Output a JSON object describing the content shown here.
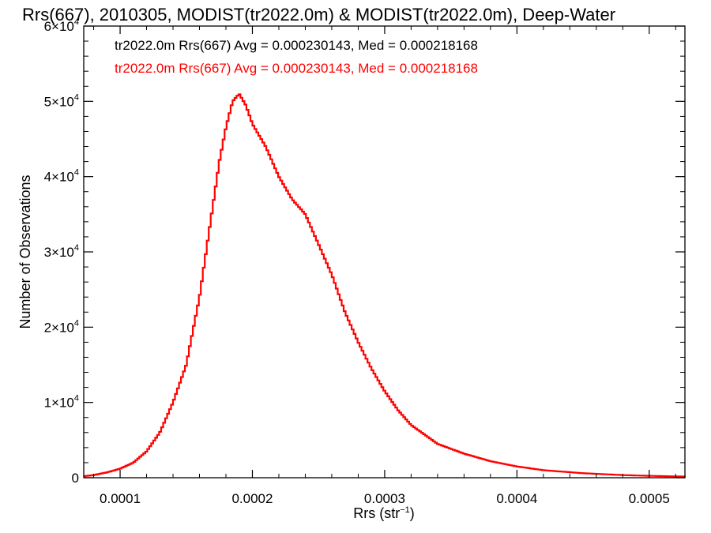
{
  "chart_data": {
    "type": "line",
    "style": "histogram-step",
    "title": "Rrs(667), 2010305, MODIST(tr2022.0m) & MODIST(tr2022.0m), Deep-Water",
    "xlabel_main": "Rrs (str",
    "xlabel_sup": "−1",
    "xlabel_close": ")",
    "ylabel": "Number of Observations",
    "xlim": [
      7.25e-05,
      0.000527
    ],
    "ylim": [
      0,
      60000
    ],
    "x_ticks": [
      {
        "value": 0.0001,
        "label": "0.0001"
      },
      {
        "value": 0.0002,
        "label": "0.0002"
      },
      {
        "value": 0.0003,
        "label": "0.0003"
      },
      {
        "value": 0.0004,
        "label": "0.0004"
      },
      {
        "value": 0.0005,
        "label": "0.0005"
      }
    ],
    "y_ticks": [
      {
        "value": 0,
        "mant": "0",
        "exp": ""
      },
      {
        "value": 10000,
        "mant": "1×10",
        "exp": "4"
      },
      {
        "value": 20000,
        "mant": "2×10",
        "exp": "4"
      },
      {
        "value": 30000,
        "mant": "3×10",
        "exp": "4"
      },
      {
        "value": 40000,
        "mant": "4×10",
        "exp": "4"
      },
      {
        "value": 50000,
        "mant": "5×10",
        "exp": "4"
      },
      {
        "value": 60000,
        "mant": "6×10",
        "exp": "4"
      }
    ],
    "legend": [
      {
        "text": "tr2022.0m Rrs(667) Avg = 0.000230143, Med = 0.000218168",
        "color": "#000000"
      },
      {
        "text": "tr2022.0m Rrs(667) Avg = 0.000230143, Med = 0.000218168",
        "color": "#ff0000"
      }
    ],
    "series_color": "#ff0000",
    "points": [
      [
        7.3e-05,
        200
      ],
      [
        8e-05,
        350
      ],
      [
        9e-05,
        700
      ],
      [
        0.0001,
        1200
      ],
      [
        0.00011,
        2000
      ],
      [
        0.00012,
        3500
      ],
      [
        0.00013,
        6000
      ],
      [
        0.00014,
        10000
      ],
      [
        0.00015,
        15000
      ],
      [
        0.00016,
        24000
      ],
      [
        0.000165,
        30000
      ],
      [
        0.00017,
        36000
      ],
      [
        0.000175,
        42000
      ],
      [
        0.00018,
        46500
      ],
      [
        0.000185,
        50000
      ],
      [
        0.00019,
        51000
      ],
      [
        0.000195,
        49500
      ],
      [
        0.0002,
        47000
      ],
      [
        0.00021,
        44000
      ],
      [
        0.00022,
        40000
      ],
      [
        0.00023,
        37000
      ],
      [
        0.00024,
        35000
      ],
      [
        0.00025,
        31000
      ],
      [
        0.00026,
        27000
      ],
      [
        0.00027,
        22000
      ],
      [
        0.00028,
        18000
      ],
      [
        0.00029,
        14500
      ],
      [
        0.0003,
        11500
      ],
      [
        0.00031,
        9000
      ],
      [
        0.00032,
        7000
      ],
      [
        0.00034,
        4500
      ],
      [
        0.00036,
        3200
      ],
      [
        0.00038,
        2200
      ],
      [
        0.0004,
        1500
      ],
      [
        0.00042,
        1000
      ],
      [
        0.00045,
        600
      ],
      [
        0.00048,
        350
      ],
      [
        0.0005,
        250
      ],
      [
        0.000527,
        150
      ]
    ]
  }
}
